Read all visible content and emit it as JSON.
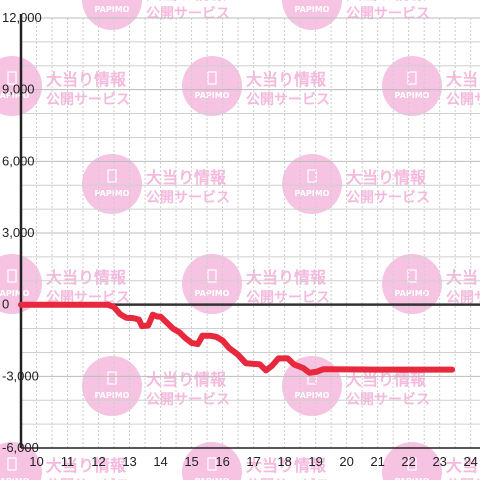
{
  "chart_data": {
    "type": "line",
    "title": "",
    "xlabel": "",
    "ylabel": "",
    "xlim": [
      9.5,
      24.3
    ],
    "ylim": [
      -6000,
      12000
    ],
    "x_ticks": [
      "10",
      "11",
      "12",
      "13",
      "14",
      "15",
      "16",
      "17",
      "18",
      "19",
      "20",
      "21",
      "22",
      "23",
      "24"
    ],
    "y_ticks": [
      "12,000",
      "9,000",
      "6,000",
      "3,000",
      "0",
      "-3,000",
      "-6,000"
    ],
    "grid": true,
    "series": [
      {
        "color": "#e8283c",
        "points": [
          [
            9.5,
            0
          ],
          [
            12.3,
            0
          ],
          [
            12.5,
            -100
          ],
          [
            12.7,
            -400
          ],
          [
            12.9,
            -550
          ],
          [
            13.1,
            -560
          ],
          [
            13.3,
            -620
          ],
          [
            13.4,
            -900
          ],
          [
            13.6,
            -870
          ],
          [
            13.75,
            -420
          ],
          [
            13.9,
            -500
          ],
          [
            14.0,
            -500
          ],
          [
            14.2,
            -750
          ],
          [
            14.4,
            -1000
          ],
          [
            14.6,
            -1150
          ],
          [
            14.8,
            -1400
          ],
          [
            15.0,
            -1600
          ],
          [
            15.2,
            -1650
          ],
          [
            15.35,
            -1300
          ],
          [
            15.6,
            -1300
          ],
          [
            15.8,
            -1350
          ],
          [
            16.0,
            -1500
          ],
          [
            16.2,
            -1800
          ],
          [
            16.5,
            -2100
          ],
          [
            16.75,
            -2450
          ],
          [
            17.2,
            -2500
          ],
          [
            17.4,
            -2750
          ],
          [
            17.6,
            -2550
          ],
          [
            17.8,
            -2250
          ],
          [
            18.1,
            -2250
          ],
          [
            18.3,
            -2500
          ],
          [
            18.6,
            -2650
          ],
          [
            18.8,
            -2850
          ],
          [
            19.05,
            -2800
          ],
          [
            19.25,
            -2700
          ],
          [
            19.5,
            -2700
          ],
          [
            21.0,
            -2720
          ],
          [
            23.4,
            -2720
          ]
        ]
      }
    ]
  },
  "watermark": {
    "title": "大当り情報",
    "subtitle": "公開サービス",
    "logo": "PAPIMO",
    "color": "#f6b9de"
  }
}
